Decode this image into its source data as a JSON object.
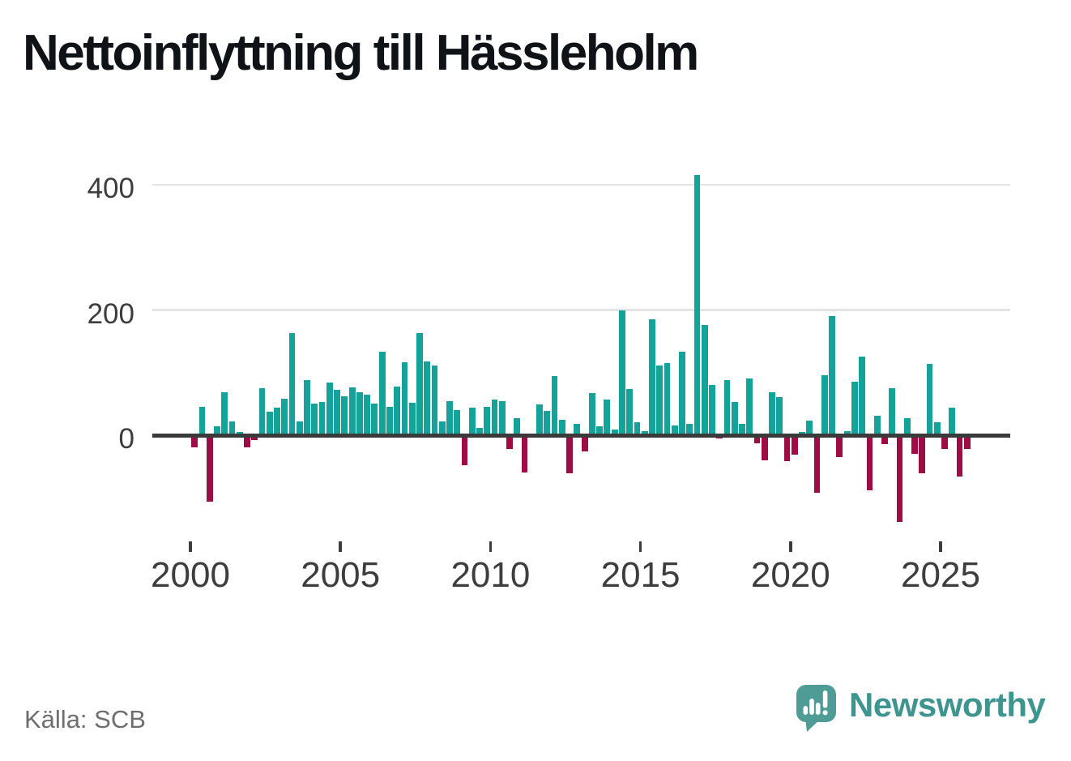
{
  "title": "Nettoinflyttning till Hässleholm",
  "source": "Källa: SCB",
  "branding": {
    "name": "Newsworthy",
    "logo_icon": "newsworthy-speech-bubble-bar-chart-icon"
  },
  "colors": {
    "positive_bar": "#14a39a",
    "negative_bar": "#9e0c46",
    "axis_line": "#3a3a3a",
    "gridline": "#e4e4e4",
    "tick_label": "#3d3d3d",
    "source_text": "#6e6e6e",
    "brand_teal": "#3e948e",
    "logo_bubble": "#4f9c96"
  },
  "chart_data": {
    "type": "bar",
    "title": "Nettoinflyttning till Hässleholm",
    "unit": "net migration per quarter (persons)",
    "frequency": "quarterly",
    "start": "2000-Q1",
    "end": "2025-Q4",
    "start_year": 2000,
    "values": [
      -19,
      45,
      -106,
      14,
      69,
      23,
      6,
      -19,
      -8,
      76,
      38,
      44,
      58,
      163,
      23,
      88,
      51,
      53,
      84,
      73,
      63,
      77,
      69,
      65,
      51,
      133,
      46,
      78,
      117,
      52,
      163,
      118,
      112,
      23,
      55,
      40,
      -48,
      44,
      12,
      45,
      57,
      55,
      -22,
      28,
      -59,
      0,
      49,
      39,
      95,
      25,
      -60,
      18,
      -25,
      68,
      15,
      57,
      10,
      200,
      74,
      21,
      7,
      185,
      112,
      115,
      16,
      133,
      19,
      415,
      176,
      80,
      -5,
      88,
      53,
      19,
      91,
      -12,
      -40,
      69,
      61,
      -41,
      -31,
      5,
      24,
      -92,
      96,
      190,
      -35,
      7,
      86,
      126,
      -88,
      31,
      -14,
      76,
      -138,
      27,
      -29,
      -61,
      114,
      21,
      -22,
      44,
      -66,
      -22
    ],
    "yticks": [
      400,
      200,
      0
    ],
    "ytick_labels": [
      "400",
      "200",
      "0"
    ],
    "xticks": [
      2000,
      2005,
      2010,
      2015,
      2020,
      2025
    ],
    "xtick_labels": [
      "2000",
      "2005",
      "2010",
      "2015",
      "2020",
      "2025"
    ],
    "ylim": [
      -150,
      450
    ],
    "grid": "horizontal gridlines at 200 and 400 only",
    "legend": "none",
    "bar_colors": "teal for positive values, dark crimson for negative values"
  }
}
